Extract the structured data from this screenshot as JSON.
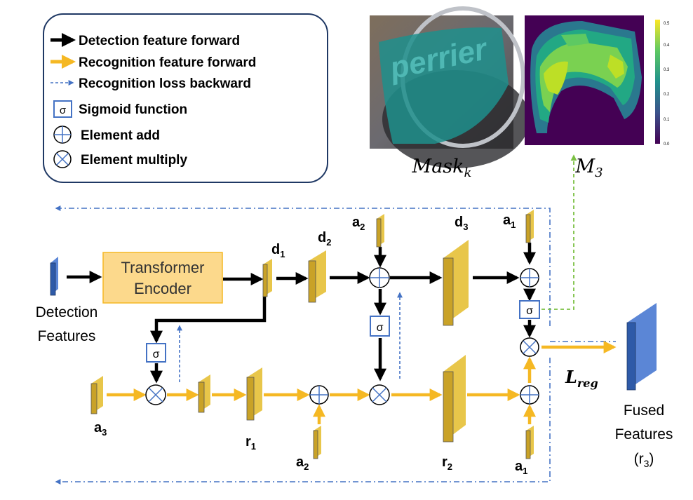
{
  "legend": {
    "items": [
      {
        "label": "Detection feature forward",
        "icon": "black-arrow-icon",
        "color": "#000000"
      },
      {
        "label": "Recognition feature forward",
        "icon": "orange-arrow-icon",
        "color": "#F5B823"
      },
      {
        "label": "Recognition loss backward",
        "icon": "blue-dashed-arrow-icon",
        "color": "#4472C4"
      },
      {
        "label": "Sigmoid function",
        "icon": "sigmoid-icon",
        "symbol": "σ"
      },
      {
        "label": "Element add",
        "icon": "element-add-icon"
      },
      {
        "label": "Element multiply",
        "icon": "element-multiply-icon"
      }
    ]
  },
  "images": {
    "mask_label": "Mask",
    "mask_sub": "k",
    "m3_label": "M",
    "m3_sub": "3",
    "colorbar_ticks": [
      "0.5",
      "0.4",
      "0.3",
      "0.2",
      "0.1",
      "0.0"
    ],
    "photo_text": "perrier"
  },
  "nodes": {
    "detection_features": [
      "Detection",
      "Features"
    ],
    "transformer": [
      "Transformer",
      "Encoder"
    ],
    "fused_features": [
      "Fused",
      "Features",
      "(r",
      "3",
      ")"
    ],
    "sigmoid_symbol": "σ",
    "loss": "L",
    "loss_sub": "reg"
  },
  "labels": {
    "d1": {
      "main": "d",
      "sub": "1"
    },
    "d2": {
      "main": "d",
      "sub": "2"
    },
    "d3": {
      "main": "d",
      "sub": "3"
    },
    "a1_top": {
      "main": "a",
      "sub": "1"
    },
    "a2_top": {
      "main": "a",
      "sub": "2"
    },
    "a3": {
      "main": "a",
      "sub": "3"
    },
    "r1": {
      "main": "r",
      "sub": "1"
    },
    "r2": {
      "main": "r",
      "sub": "2"
    },
    "a2_bottom": {
      "main": "a",
      "sub": "2"
    },
    "a1_bottom": {
      "main": "a",
      "sub": "1"
    }
  },
  "colors": {
    "feature_fill": "#C9A227",
    "feature_side": "#E8C64A",
    "detection_blue": "#2E5AA8",
    "transformer_fill": "#FCD98C",
    "orange": "#F5B823",
    "blue_dash": "#4472C4",
    "green_dash": "#7BC043",
    "teal_overlay": "#1F8F8C"
  }
}
